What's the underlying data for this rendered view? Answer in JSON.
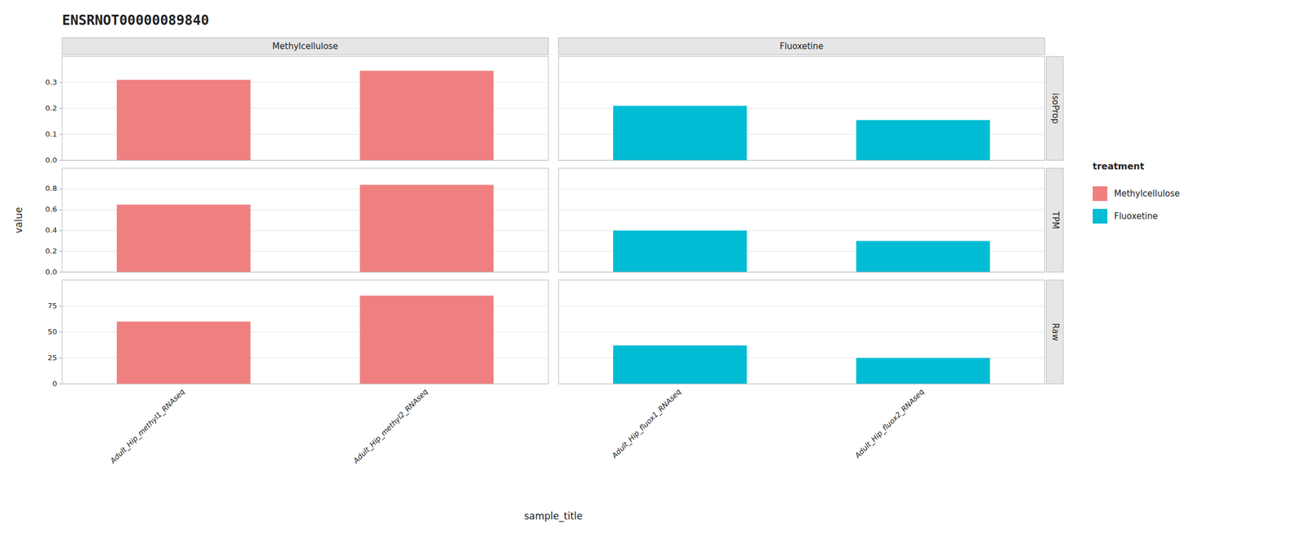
{
  "chart_data": {
    "type": "bar",
    "title": "ENSRNOT00000089840",
    "xlabel": "sample_title",
    "ylabel": "value",
    "legend_title": "treatment",
    "legend": "right",
    "grid": true,
    "columns": [
      {
        "name": "Methylcellulose",
        "color": "#F08080",
        "categories": [
          "Adult_Hip_methyl1_RNAseq",
          "Adult_Hip_methyl2_RNAseq"
        ]
      },
      {
        "name": "Fluoxetine",
        "color": "#00BCD4",
        "categories": [
          "Adult_Hip_fluox1_RNAseq",
          "Adult_Hip_fluox2_RNAseq"
        ]
      }
    ],
    "rows": [
      {
        "name": "isoProp",
        "ylim": [
          0,
          0.4
        ],
        "yticks": [
          {
            "value": 0,
            "label": "0.0"
          },
          0.1,
          0.2,
          0.3
        ],
        "values": [
          [
            0.31,
            0.345
          ],
          [
            0.21,
            0.155
          ]
        ]
      },
      {
        "name": "TPM",
        "ylim": [
          0,
          1.0
        ],
        "yticks": [
          {
            "value": 0,
            "label": "0.0"
          },
          0.2,
          0.4,
          0.6,
          0.8
        ],
        "values": [
          [
            0.65,
            0.84
          ],
          [
            0.4,
            0.3
          ]
        ]
      },
      {
        "name": "Raw",
        "ylim": [
          0,
          100
        ],
        "yticks": [
          0,
          25,
          50,
          75
        ],
        "values": [
          [
            60,
            85
          ],
          [
            37,
            25
          ]
        ]
      }
    ]
  }
}
